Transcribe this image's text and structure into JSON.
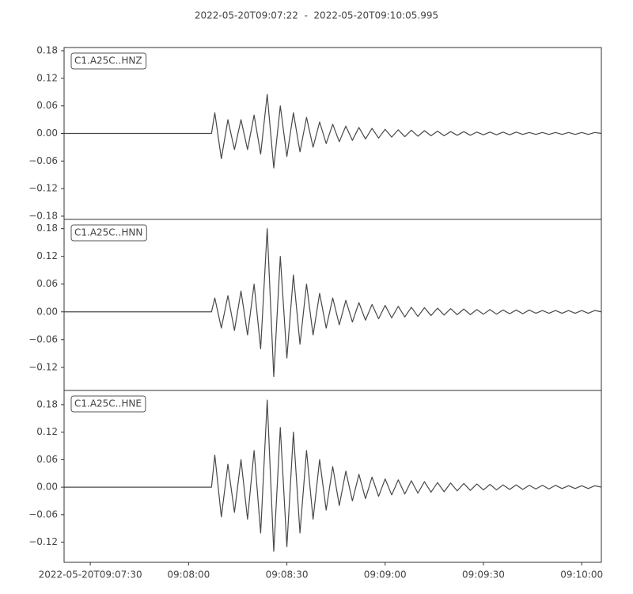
{
  "chart_data": {
    "type": "line",
    "title": "2022-05-20T09:07:22  -  2022-05-20T09:10:05.995",
    "x": [
      "09:07:22",
      "09:08:07",
      "09:08:08",
      "09:08:10",
      "09:08:12",
      "09:08:14",
      "09:08:16",
      "09:08:18",
      "09:08:20",
      "09:08:22",
      "09:08:24",
      "09:08:26",
      "09:08:28",
      "09:08:30",
      "09:08:32",
      "09:08:34",
      "09:08:36",
      "09:08:38",
      "09:08:40",
      "09:08:42",
      "09:08:44",
      "09:08:46",
      "09:08:48",
      "09:08:50",
      "09:08:52",
      "09:08:54",
      "09:08:56",
      "09:08:58",
      "09:09:00",
      "09:09:02",
      "09:09:04",
      "09:09:06",
      "09:09:08",
      "09:09:10",
      "09:09:12",
      "09:09:14",
      "09:09:16",
      "09:09:18",
      "09:09:20",
      "09:09:22",
      "09:09:24",
      "09:09:26",
      "09:09:28",
      "09:09:30",
      "09:09:32",
      "09:09:34",
      "09:09:36",
      "09:09:38",
      "09:09:40",
      "09:09:42",
      "09:09:44",
      "09:09:46",
      "09:09:48",
      "09:09:50",
      "09:09:52",
      "09:09:54",
      "09:09:56",
      "09:09:58",
      "09:10:00",
      "09:10:02",
      "09:10:04",
      "09:10:05.995"
    ],
    "xlim": [
      "09:07:22",
      "09:10:05.995"
    ],
    "xticks": [
      {
        "value": "09:07:30",
        "label": "2022-05-20T09:07:30"
      },
      "09:08:00",
      "09:08:30",
      "09:09:00",
      "09:09:30",
      "09:10:00"
    ],
    "series": [
      {
        "name": "C1.A25C..HNZ",
        "color": "#484848",
        "values": [
          0,
          0,
          0.045,
          -0.055,
          0.03,
          -0.035,
          0.03,
          -0.035,
          0.04,
          -0.045,
          0.085,
          -0.075,
          0.06,
          -0.05,
          0.045,
          -0.04,
          0.035,
          -0.03,
          0.025,
          -0.022,
          0.02,
          -0.018,
          0.016,
          -0.015,
          0.013,
          -0.012,
          0.011,
          -0.01,
          0.009,
          -0.008,
          0.008,
          -0.007,
          0.007,
          -0.006,
          0.006,
          -0.005,
          0.005,
          -0.005,
          0.004,
          -0.004,
          0.004,
          -0.004,
          0.003,
          -0.003,
          0.003,
          -0.003,
          0.003,
          -0.003,
          0.003,
          -0.002,
          0.002,
          -0.002,
          0.002,
          -0.002,
          0.002,
          -0.002,
          0.002,
          -0.002,
          0.002,
          -0.002,
          0.002,
          0
        ],
        "ylim": [
          -0.187,
          0.187
        ],
        "yticks": [
          0.18,
          0.12,
          0.06,
          {
            "value": 0,
            "label": "0.00"
          },
          {
            "value": -0.06,
            "label": "−0.06"
          },
          {
            "value": -0.12,
            "label": "−0.12"
          },
          {
            "value": -0.18,
            "label": "−0.18"
          }
        ]
      },
      {
        "name": "C1.A25C..HNN",
        "color": "#484848",
        "values": [
          0,
          0,
          0.03,
          -0.035,
          0.035,
          -0.04,
          0.045,
          -0.05,
          0.06,
          -0.08,
          0.18,
          -0.14,
          0.12,
          -0.1,
          0.08,
          -0.07,
          0.06,
          -0.05,
          0.04,
          -0.035,
          0.03,
          -0.028,
          0.025,
          -0.022,
          0.02,
          -0.018,
          0.016,
          -0.015,
          0.014,
          -0.013,
          0.012,
          -0.011,
          0.01,
          -0.01,
          0.009,
          -0.008,
          0.008,
          -0.007,
          0.007,
          -0.006,
          0.006,
          -0.006,
          0.005,
          -0.005,
          0.005,
          -0.005,
          0.004,
          -0.004,
          0.004,
          -0.004,
          0.004,
          -0.003,
          0.003,
          -0.003,
          0.003,
          -0.003,
          0.003,
          -0.003,
          0.003,
          -0.003,
          0.003,
          0
        ],
        "ylim": [
          -0.17,
          0.2
        ],
        "yticks": [
          0.18,
          0.12,
          0.06,
          {
            "value": 0,
            "label": "0.00"
          },
          {
            "value": -0.06,
            "label": "−0.06"
          },
          {
            "value": -0.12,
            "label": "−0.12"
          }
        ]
      },
      {
        "name": "C1.A25C..HNE",
        "color": "#484848",
        "values": [
          0,
          0,
          0.07,
          -0.065,
          0.05,
          -0.055,
          0.06,
          -0.07,
          0.08,
          -0.1,
          0.19,
          -0.14,
          0.13,
          -0.13,
          0.12,
          -0.1,
          0.08,
          -0.07,
          0.06,
          -0.05,
          0.045,
          -0.04,
          0.035,
          -0.03,
          0.028,
          -0.025,
          0.022,
          -0.02,
          0.018,
          -0.017,
          0.016,
          -0.015,
          0.014,
          -0.013,
          0.012,
          -0.011,
          0.01,
          -0.01,
          0.009,
          -0.008,
          0.008,
          -0.007,
          0.007,
          -0.006,
          0.006,
          -0.006,
          0.005,
          -0.005,
          0.005,
          -0.005,
          0.004,
          -0.004,
          0.004,
          -0.004,
          0.004,
          -0.003,
          0.003,
          -0.003,
          0.003,
          -0.003,
          0.003,
          0
        ],
        "ylim": [
          -0.164,
          0.211
        ],
        "yticks": [
          0.18,
          0.12,
          0.06,
          {
            "value": 0,
            "label": "0.00"
          },
          {
            "value": -0.06,
            "label": "−0.06"
          },
          {
            "value": -0.12,
            "label": "−0.12"
          }
        ]
      }
    ]
  }
}
